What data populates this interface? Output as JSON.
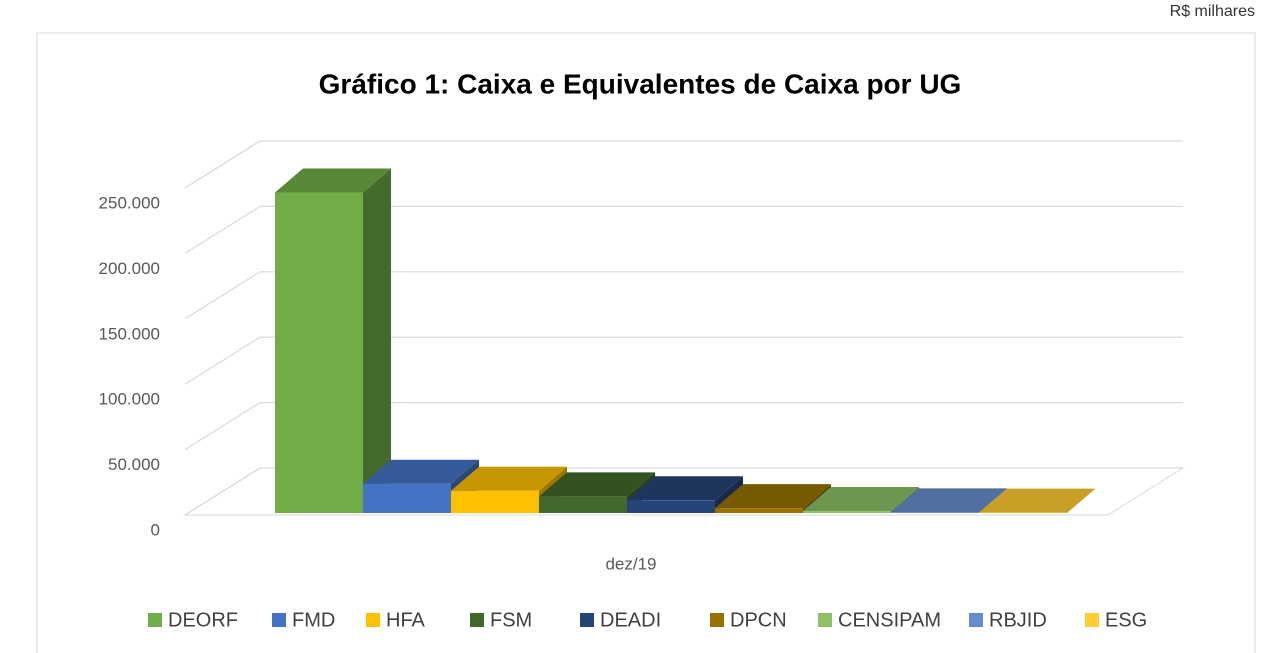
{
  "unit_note": "R$ milhares",
  "chart_data": {
    "type": "bar3d",
    "title": "Gráfico 1: Caixa e Equivalentes de Caixa por UG",
    "categories": [
      "dez/19"
    ],
    "ylim": [
      0,
      250000
    ],
    "yticks": [
      0,
      {
        "value": 50000,
        "label": "50.000"
      },
      {
        "value": 100000,
        "label": "100.000"
      },
      {
        "value": 150000,
        "label": "150.000"
      },
      {
        "value": 200000,
        "label": "200.000"
      },
      {
        "value": 250000,
        "label": "250.000"
      }
    ],
    "grid": true,
    "legend": "bottom",
    "series": [
      {
        "name": "DEORF",
        "color": "#70ad47",
        "values": [
          245000
        ]
      },
      {
        "name": "FMD",
        "color": "#4472c4",
        "values": [
          22400
        ]
      },
      {
        "name": "HFA",
        "color": "#ffc000",
        "values": [
          17000
        ]
      },
      {
        "name": "FSM",
        "color": "#43682b",
        "values": [
          12700
        ]
      },
      {
        "name": "DEADI",
        "color": "#264478",
        "values": [
          9700
        ]
      },
      {
        "name": "DPCN",
        "color": "#997300",
        "values": [
          3700
        ]
      },
      {
        "name": "CENSIPAM",
        "color": "#8cc168",
        "values": [
          1500
        ]
      },
      {
        "name": "RBJID",
        "color": "#698ed0",
        "values": [
          500
        ]
      },
      {
        "name": "ESG",
        "color": "#ffcd33",
        "values": [
          300
        ]
      }
    ]
  }
}
